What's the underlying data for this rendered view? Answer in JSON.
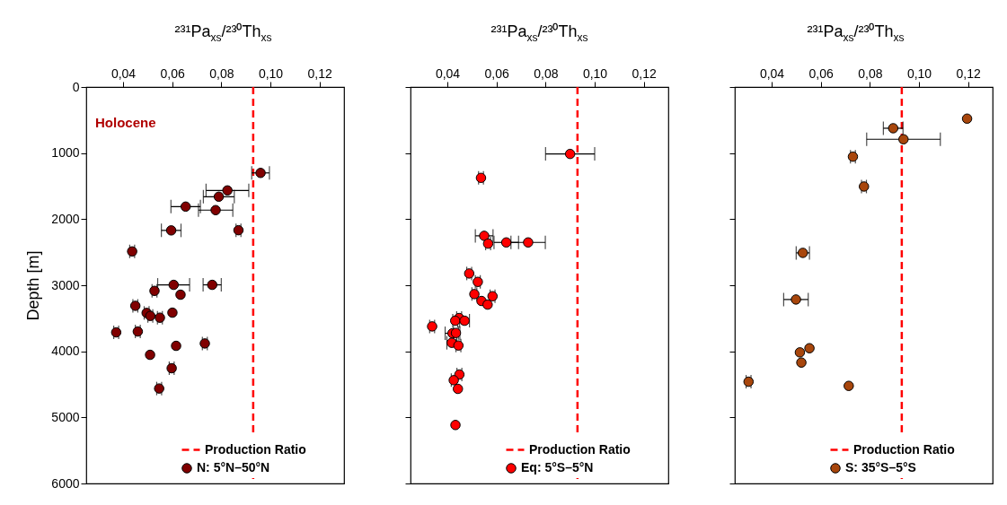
{
  "chart_data": [
    {
      "type": "scatter",
      "xlabel": "²³¹Pa$_{xs}$/²³⁰Th$_{xs}$",
      "ylabel": "Depth [m]",
      "xlim": [
        0.025,
        0.13
      ],
      "xticks": [
        {
          "value": 0.04,
          "label": "0,04"
        },
        {
          "value": 0.06,
          "label": "0,06"
        },
        {
          "value": 0.08,
          "label": "0,08"
        },
        {
          "value": 0.1,
          "label": "0,10"
        },
        {
          "value": 0.12,
          "label": "0,12"
        }
      ],
      "ylim": [
        6000,
        0
      ],
      "yticks": [
        0,
        1000,
        2000,
        3000,
        4000,
        5000,
        6000
      ],
      "marker": "circle",
      "legend": "bottom right",
      "annotations": [
        "Holocene"
      ],
      "ref_lines": [
        {
          "axis": "x",
          "value": 0.093,
          "label": "Production Ratio",
          "color": "#ff0000",
          "line_style": "dashed"
        }
      ],
      "series": [
        {
          "name": "N: 5°N–50°N",
          "color": "#800000",
          "x": [
            0.096,
            0.0825,
            0.079,
            0.0655,
            0.0777,
            0.0596,
            0.087,
            0.0437,
            0.0606,
            0.0763,
            0.0528,
            0.0634,
            0.045,
            0.0496,
            0.0511,
            0.055,
            0.0601,
            0.0372,
            0.046,
            0.051,
            0.0616,
            0.0733,
            0.0598,
            0.0547
          ],
          "values": [
            1300,
            1565,
            1660,
            1810,
            1863,
            2170,
            2167,
            2488,
            2994,
            2994,
            3085,
            3143,
            3311,
            3419,
            3464,
            3491,
            3415,
            3713,
            3700,
            4053,
            3917,
            3881,
            4256,
            4563
          ],
          "xerrors": [
            0.0036,
            0.0087,
            0.0063,
            0.006,
            0.007,
            0.004,
            0.001,
            0.001,
            0.0065,
            0.0037,
            0.001,
            null,
            0.001,
            0.001,
            0.001,
            0.001,
            null,
            0.001,
            0.001,
            null,
            null,
            0.001,
            0.001,
            0.001
          ]
        }
      ]
    },
    {
      "type": "scatter",
      "xlabel": "²³¹Pa$_{xs}$/²³⁰Th$_{xs}$",
      "xlim": [
        0.025,
        0.13
      ],
      "xticks": [
        {
          "value": 0.04,
          "label": "0,04"
        },
        {
          "value": 0.06,
          "label": "0,06"
        },
        {
          "value": 0.08,
          "label": "0,08"
        },
        {
          "value": 0.1,
          "label": "0,10"
        },
        {
          "value": 0.12,
          "label": "0,12"
        }
      ],
      "ylim": [
        6000,
        0
      ],
      "yticks": [
        0,
        1000,
        2000,
        3000,
        4000,
        5000,
        6000
      ],
      "tick_labels": "x",
      "marker": "circle",
      "legend": "bottom right",
      "ref_lines": [
        {
          "axis": "x",
          "value": 0.093,
          "label": "Production Ratio",
          "color": "#ff0000",
          "line_style": "dashed"
        }
      ],
      "series": [
        {
          "name": "Eq: 5°S–5°N",
          "color": "#ff0000",
          "x": [
            0.09,
            0.0537,
            0.055,
            0.0566,
            0.064,
            0.0729,
            0.0489,
            0.0524,
            0.051,
            0.0584,
            0.0539,
            0.0564,
            0.0448,
            0.0432,
            0.047,
            0.0338,
            0.0421,
            0.0435,
            0.0418,
            0.0445,
            0.0449,
            0.0426,
            0.0443,
            0.0433
          ],
          "values": [
            1013,
            1375,
            2252,
            2370,
            2352,
            2352,
            2822,
            2949,
            3134,
            3166,
            3238,
            3293,
            3496,
            3537,
            3537,
            3623,
            3727,
            3722,
            3871,
            3912,
            4351,
            4437,
            4568,
            5115
          ],
          "xerrors": [
            0.01,
            0.001,
            0.0036,
            0.001,
            0.005,
            0.007,
            0.001,
            0.001,
            0.001,
            0.001,
            null,
            null,
            0.001,
            0.001,
            0.002,
            0.001,
            0.003,
            0.001,
            0.002,
            0.001,
            0.001,
            0.001,
            null,
            null
          ]
        }
      ]
    },
    {
      "type": "scatter",
      "xlabel": "²³¹Pa$_{xs}$/²³⁰Th$_{xs}$",
      "xlim": [
        0.025,
        0.13
      ],
      "xticks": [
        {
          "value": 0.04,
          "label": "0,04"
        },
        {
          "value": 0.06,
          "label": "0,06"
        },
        {
          "value": 0.08,
          "label": "0,08"
        },
        {
          "value": 0.1,
          "label": "0,10"
        },
        {
          "value": 0.12,
          "label": "0,12"
        }
      ],
      "ylim": [
        6000,
        0
      ],
      "yticks": [
        0,
        1000,
        2000,
        3000,
        4000,
        5000,
        6000
      ],
      "tick_labels": "x",
      "marker": "circle",
      "legend": "bottom right",
      "ref_lines": [
        {
          "axis": "x",
          "value": 0.093,
          "label": "Production Ratio",
          "color": "#ff0000",
          "line_style": "dashed"
        }
      ],
      "series": [
        {
          "name": "S: 35°S–5°S",
          "color": "#a8460c",
          "x": [
            0.1196,
            0.0895,
            0.0937,
            0.0731,
            0.0776,
            0.0527,
            0.0499,
            0.0554,
            0.0515,
            0.0521,
            0.0306,
            0.0714
          ],
          "values": [
            479,
            624,
            791,
            1054,
            1506,
            2510,
            3216,
            3953,
            4016,
            4170,
            4460,
            4523
          ],
          "xerrors": [
            null,
            0.004,
            0.015,
            0.001,
            0.001,
            0.0027,
            0.005,
            null,
            null,
            null,
            0.001,
            null
          ]
        }
      ]
    }
  ]
}
